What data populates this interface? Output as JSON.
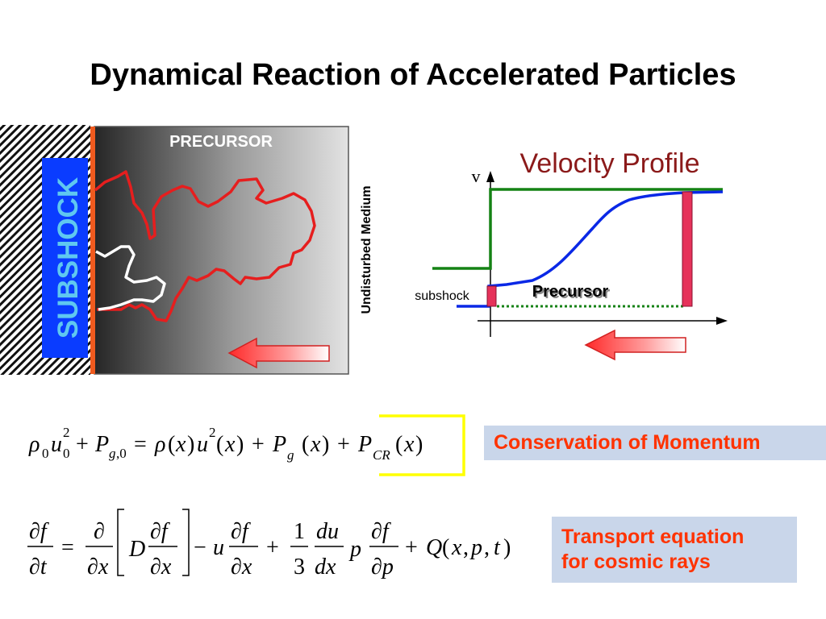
{
  "title": "Dynamical Reaction of Accelerated Particles",
  "diagram": {
    "subshock_label": "SUBSHOCK",
    "precursor_label": "PRECURSOR",
    "undisturbed_label": "Undisturbed Medium"
  },
  "velocity_profile": {
    "title": "Velocity Profile",
    "axis_v": "v",
    "subshock_label": "subshock",
    "precursor_label": "Precursor"
  },
  "equations": {
    "momentum_label": "Conservation of Momentum",
    "transport_label_line1": "Transport equation",
    "transport_label_line2": "for cosmic rays"
  },
  "colors": {
    "title_red": "#8b1a1a",
    "label_orange": "#ff3300",
    "subshock_blue": "#0a3cff",
    "green_line": "#148214",
    "blue_curve": "#0a28e6",
    "pink_bar": "#e6325a",
    "box_fill": "#c9d6ea",
    "highlight_yellow": "#ffff00"
  }
}
